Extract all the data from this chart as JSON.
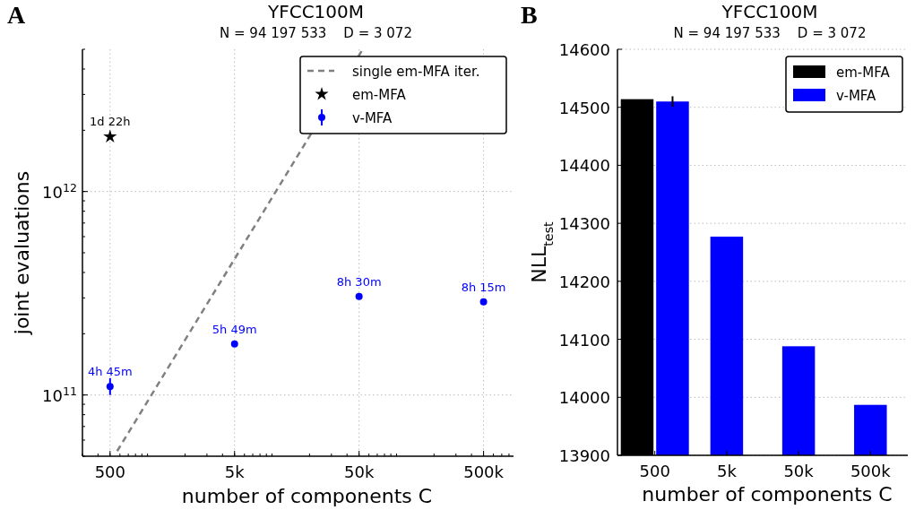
{
  "chart_data": [
    {
      "type": "scatter",
      "title": "YFCC100M",
      "subtitle": "N = 94 197 533    D = 3 072",
      "xlabel": "number of components C",
      "ylabel": "joint evaluations",
      "log": "xy",
      "grid": true,
      "legend": "top right",
      "xlim": [
        300,
        870000
      ],
      "ylim": [
        50000000000.0,
        5000000000000.0
      ],
      "xticks": [
        {
          "value": 500,
          "label": "500"
        },
        {
          "value": 5000,
          "label": "5k"
        },
        {
          "value": 50000,
          "label": "50k"
        },
        {
          "value": 500000,
          "label": "500k"
        }
      ],
      "yticks": [
        {
          "value": 100000000000.0,
          "label": "10$^{11}$"
        },
        {
          "value": 1000000000000.0,
          "label": "10$^{12}$"
        }
      ],
      "series": [
        {
          "name": "single em-MFA iter.",
          "type": "line",
          "color": "#808080",
          "line_style": "dashed",
          "x": [
            570,
            53500
          ],
          "values": [
            53000000000.0,
            5000000000000.0
          ]
        },
        {
          "name": "em-MFA",
          "color": "#000000",
          "marker": "star",
          "x": [
            500
          ],
          "values": [
            1860000000000.0
          ]
        },
        {
          "name": "v-MFA",
          "color": "#0000ff",
          "marker": "circle",
          "x": [
            500,
            5000,
            50000,
            500000
          ],
          "values": [
            110000000000.0,
            178000000000.0,
            305000000000.0,
            287000000000.0
          ],
          "errors": [
            [
              100000000000.0,
              121000000000.0
            ],
            null,
            null,
            null
          ]
        }
      ],
      "annotations": [
        "A",
        {
          "text": "1d 22h",
          "x": 500,
          "y": 1860000000000.0
        },
        {
          "text": "4h 45m",
          "x": 500,
          "y": 110000000000.0
        },
        {
          "text": "5h 49m",
          "x": 5000,
          "y": 178000000000.0
        },
        {
          "text": "8h 30m",
          "x": 50000,
          "y": 305000000000.0
        },
        {
          "text": "8h 15m",
          "x": 500000,
          "y": 287000000000.0
        }
      ]
    },
    {
      "type": "bar",
      "title": "YFCC100M",
      "subtitle": "N = 94 197 533    D = 3 072",
      "xlabel": "number of components C",
      "ylabel": "NLL$_{test}$",
      "grid": "y",
      "legend": "top right",
      "categories": [
        "500",
        "5k",
        "50k",
        "500k"
      ],
      "ylim": [
        13900,
        14600
      ],
      "yticks": [
        13900,
        14000,
        14100,
        14200,
        14300,
        14400,
        14500,
        14600
      ],
      "series": [
        {
          "name": "em-MFA",
          "color": "#000000",
          "values": [
            14514,
            null,
            null,
            null
          ]
        },
        {
          "name": "v-MFA",
          "color": "#0000ff",
          "values": [
            14510,
            14277,
            14088,
            13987
          ],
          "errors": [
            9,
            null,
            null,
            null
          ]
        }
      ],
      "annotations": [
        "B"
      ]
    }
  ]
}
